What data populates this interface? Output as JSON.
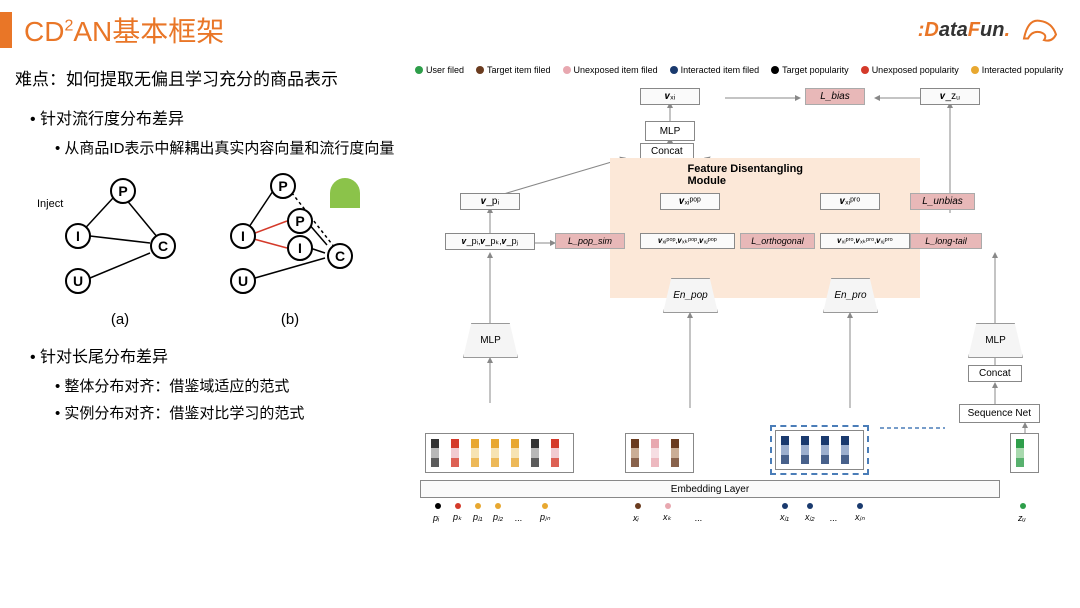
{
  "title_pre": "CD",
  "title_sup": "2",
  "title_post": "AN基本框架",
  "logo_text": "DataFun.",
  "difficulty": "难点：如何提取无偏且学习充分的商品表示",
  "bullets": {
    "b1": "针对流行度分布差异",
    "b1_1": "从商品ID表示中解耦出真实内容向量和流行度向量",
    "b2": "针对长尾分布差异",
    "b2_1": "整体分布对齐：借鉴域适应的范式",
    "b2_2": "实例分布对齐：借鉴对比学习的范式"
  },
  "graph": {
    "inject": "Inject",
    "P": "P",
    "I": "I",
    "U": "U",
    "C": "C",
    "la": "(a)",
    "lb": "(b)"
  },
  "legend": [
    {
      "color": "#2e9e4a",
      "label": "User filed"
    },
    {
      "color": "#6b3c1f",
      "label": "Target item filed"
    },
    {
      "color": "#e8a8b0",
      "label": "Unexposed item filed"
    },
    {
      "color": "#1a3a6e",
      "label": "Interacted item filed"
    },
    {
      "color": "#000000",
      "label": "Target popularity"
    },
    {
      "color": "#d43a2a",
      "label": "Unexposed popularity"
    },
    {
      "color": "#e8a830",
      "label": "Interacted popularity"
    }
  ],
  "boxes": {
    "vxi": "𝒗ₓᵢ",
    "lbias": "L_bias",
    "vzu": "𝒗_zᵤ",
    "mlp": "MLP",
    "concat": "Concat",
    "fdm": "Feature Disentangling Module",
    "vpi": "𝒗_pᵢ",
    "vxi_pop": "𝒗ₓᵢᵖᵒᵖ",
    "vxi_pro": "𝒗ₓᵢᵖʳᵒ",
    "lunbias": "L_unbias",
    "vp_set": "𝒗_pᵢ,𝒗_pₖ,𝒗_pⱼ",
    "lpop": "L_pop_sim",
    "vx_pop_set": "𝒗ₓᵢᵖᵒᵖ,𝒗ₓₖᵖᵒᵖ,𝒗ₓⱼᵖᵒᵖ",
    "lorth": "L_orthogonal",
    "vx_pro_set": "𝒗ₓᵢᵖʳᵒ,𝒗ₓₖᵖʳᵒ,𝒗ₓⱼᵖʳᵒ",
    "llong": "L_long-tail",
    "enpop": "En_pop",
    "enpro": "En_pro",
    "seqnet": "Sequence Net",
    "embed": "Embedding Layer"
  },
  "sublabels": {
    "pi": "pᵢ",
    "pk": "pₖ",
    "pj1": "pⱼ₁",
    "pj2": "pⱼ₂",
    "pjn": "pⱼₙ",
    "xi": "xᵢ",
    "xk": "xₖ",
    "xj1": "xⱼ₁",
    "xj2": "xⱼ₂",
    "xjn": "xⱼₙ",
    "zu": "zᵤ",
    "dots": "..."
  },
  "colors": {
    "orange": "#e97627",
    "rbox_bg": "#e8b8b8",
    "fdm_bg": "#fce8d8",
    "red_edge": "#d43a2a",
    "dash_blue": "#4a7db8"
  },
  "embed_palettes": {
    "left": [
      "#333",
      "#888",
      "#d43a2a",
      "#e8a8b0",
      "#e8a830",
      "#f0d080",
      "#e8a830",
      "#f0d080",
      "#e8a830",
      "#f0d080"
    ],
    "mid1": [
      "#6b3c1f",
      "#a87850",
      "#e8a8b0",
      "#f0c8d0"
    ],
    "mid2": [
      "#1a3a6e",
      "#5a7aae",
      "#1a3a6e",
      "#5a7aae",
      "#1a3a6e",
      "#5a7aae"
    ],
    "right": [
      "#2e9e4a",
      "#6ec078"
    ]
  }
}
